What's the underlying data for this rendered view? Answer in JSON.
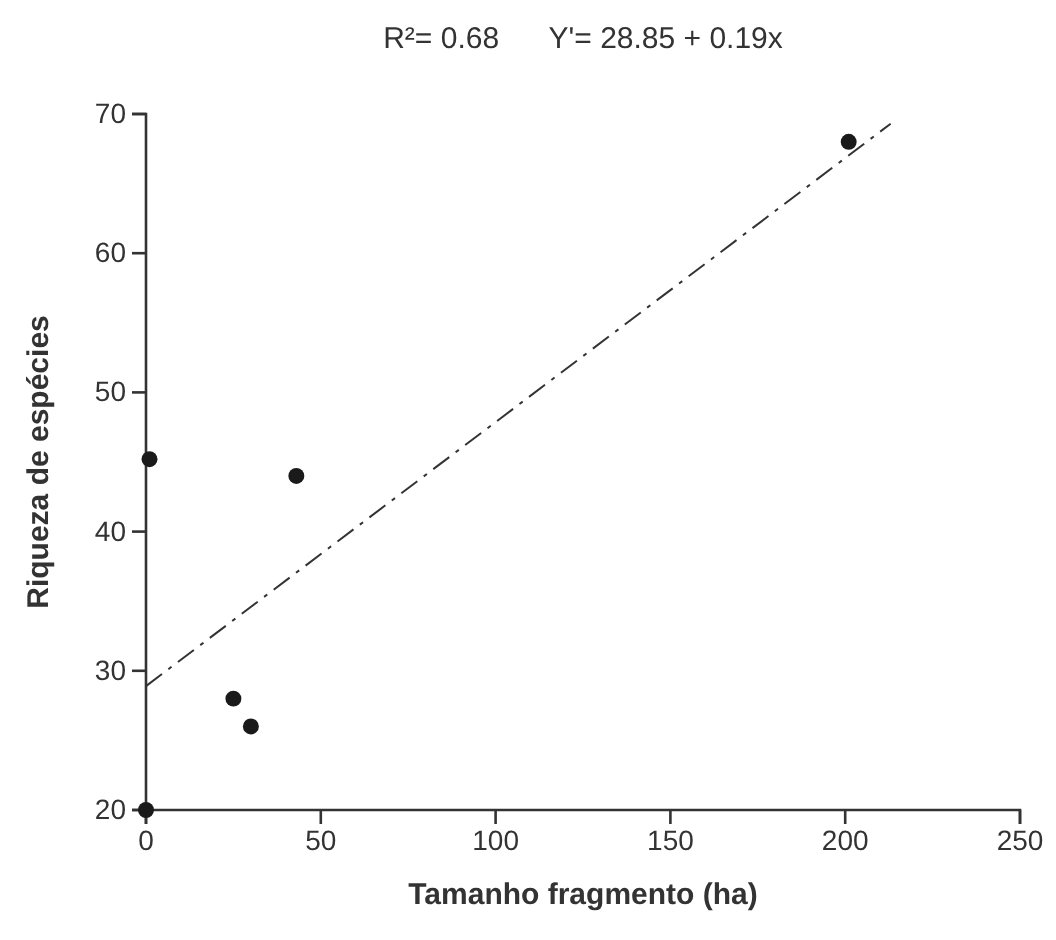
{
  "chart_data": {
    "type": "scatter",
    "title": "R²= 0.68      Y'= 28.85 + 0.19x",
    "xlabel": "Tamanho fragmento (ha)",
    "ylabel": "Riqueza de espécies",
    "xlim": [
      0,
      250
    ],
    "xticks": [
      0,
      50,
      100,
      150,
      200,
      250
    ],
    "ylim": [
      20,
      70
    ],
    "yticks": [
      20,
      30,
      40,
      50,
      60,
      70
    ],
    "grid": false,
    "series": [
      {
        "color": "#1a1a1a",
        "x": [
          1,
          0,
          25,
          30,
          43,
          201
        ],
        "values": [
          45.2,
          20,
          28,
          26,
          44,
          68
        ]
      },
      {
        "type": "line",
        "color": "#333333",
        "marker": "none",
        "line_style": "dashed",
        "x": [
          0,
          213
        ],
        "values": [
          28.9,
          69.3
        ]
      }
    ]
  }
}
